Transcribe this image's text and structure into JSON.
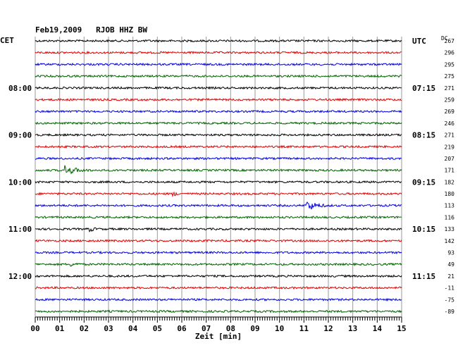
{
  "chart_data": {
    "type": "line",
    "title": "Feb19,2009   RJOB HHZ BW",
    "left_timezone": "CET",
    "right_timezone": "UTC",
    "dc_header": "DC",
    "xlabel": "Zeit [min]",
    "xlim": [
      0,
      15
    ],
    "x_ticks": [
      "00",
      "01",
      "02",
      "03",
      "04",
      "05",
      "06",
      "07",
      "08",
      "09",
      "10",
      "11",
      "12",
      "13",
      "14",
      "15"
    ],
    "trace_count": 24,
    "trace_colors": [
      "#000000",
      "#e00000",
      "#0000e0",
      "#006400"
    ],
    "left_hour_labels": [
      {
        "trace": 4,
        "text": "08:00"
      },
      {
        "trace": 8,
        "text": "09:00"
      },
      {
        "trace": 12,
        "text": "10:00"
      },
      {
        "trace": 16,
        "text": "11:00"
      },
      {
        "trace": 20,
        "text": "12:00"
      }
    ],
    "right_hour_labels": [
      {
        "trace": 0,
        "text": "UTC"
      },
      {
        "trace": 4,
        "text": "07:15"
      },
      {
        "trace": 8,
        "text": "08:15"
      },
      {
        "trace": 12,
        "text": "09:15"
      },
      {
        "trace": 16,
        "text": "10:15"
      },
      {
        "trace": 20,
        "text": "11:15"
      }
    ],
    "dc_offsets": [
      267,
      296,
      295,
      275,
      271,
      259,
      269,
      246,
      271,
      219,
      207,
      171,
      182,
      180,
      113,
      116,
      133,
      142,
      93,
      49,
      21,
      -11,
      -75,
      -89
    ],
    "events": [
      {
        "trace": 11,
        "minute": 1.3,
        "amplitude": 7,
        "duration": 1.2
      },
      {
        "trace": 13,
        "minute": 5.7,
        "amplitude": 4,
        "duration": 0.4
      },
      {
        "trace": 14,
        "minute": 11.2,
        "amplitude": 8,
        "duration": 1.0
      },
      {
        "trace": 16,
        "minute": 2.3,
        "amplitude": 4,
        "duration": 0.5
      },
      {
        "trace": 19,
        "minute": 1.5,
        "amplitude": 3,
        "duration": 0.8
      }
    ],
    "grid": true
  }
}
